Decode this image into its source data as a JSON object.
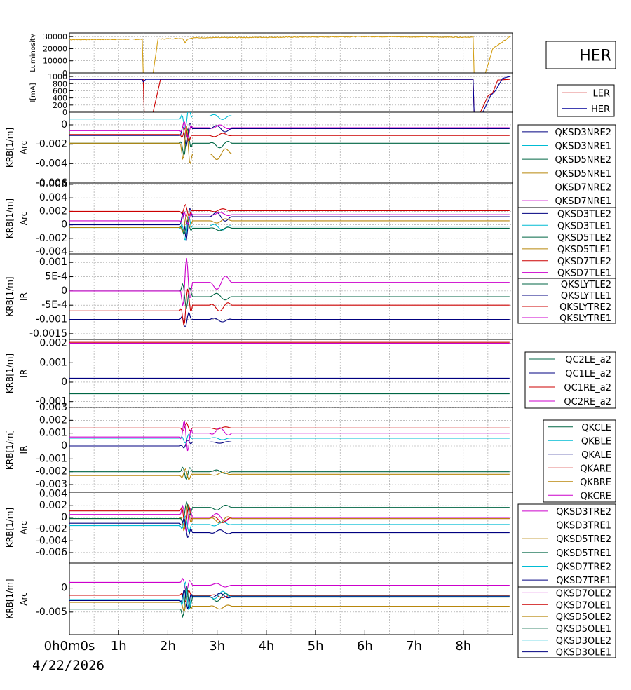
{
  "chart_data": [
    {
      "type": "line",
      "ylabel": "Luminosity",
      "yticks": [
        "30000",
        "20000",
        "10000",
        "0"
      ],
      "ylim": [
        0,
        33000
      ],
      "legend": [
        "HER"
      ],
      "series": [
        {
          "name": "HER",
          "color": "#d4a017",
          "base": 27500,
          "points": [
            [
              0,
              27500
            ],
            [
              1.2,
              27800
            ],
            [
              1.48,
              27800
            ],
            [
              1.5,
              0
            ],
            [
              1.7,
              0
            ],
            [
              1.8,
              28000
            ],
            [
              2.3,
              28500
            ],
            [
              2.35,
              25000
            ],
            [
              2.4,
              28000
            ],
            [
              2.5,
              29000
            ],
            [
              6,
              30000
            ],
            [
              8.2,
              29500
            ],
            [
              8.22,
              0
            ],
            [
              8.45,
              0
            ],
            [
              8.6,
              20000
            ],
            [
              8.95,
              30000
            ]
          ],
          "noise": 600
        }
      ]
    },
    {
      "type": "line",
      "ylabel": "I[mA]",
      "yticks": [
        "1000",
        "800",
        "600",
        "400",
        "200",
        "0"
      ],
      "ylim": [
        0,
        1100
      ],
      "legend": [
        "LER",
        "HER"
      ],
      "series": [
        {
          "name": "LER",
          "color": "#cc0000",
          "points": [
            [
              0,
              920
            ],
            [
              1.5,
              920
            ],
            [
              1.52,
              0
            ],
            [
              1.7,
              0
            ],
            [
              1.85,
              920
            ],
            [
              8.2,
              920
            ],
            [
              8.22,
              0
            ],
            [
              8.35,
              0
            ],
            [
              8.5,
              450
            ],
            [
              8.6,
              550
            ],
            [
              8.7,
              900
            ],
            [
              8.95,
              920
            ]
          ],
          "noise": 0
        },
        {
          "name": "HER",
          "color": "#000099",
          "points": [
            [
              0,
              920
            ],
            [
              1.48,
              920
            ],
            [
              1.5,
              850
            ],
            [
              1.55,
              920
            ],
            [
              8.2,
              920
            ],
            [
              8.22,
              0
            ],
            [
              8.4,
              0
            ],
            [
              8.55,
              450
            ],
            [
              8.65,
              600
            ],
            [
              8.8,
              950
            ],
            [
              8.95,
              1000
            ]
          ],
          "noise": 0
        }
      ]
    },
    {
      "type": "line",
      "ylabel": "KRB[1/m]",
      "ylabel2": "Arc",
      "yticks": [
        "0",
        "-0.002",
        "-0.004",
        "-0.006"
      ],
      "ylim": [
        -0.006,
        0.0013
      ],
      "legend": [
        "QKSD3NRE2",
        "QKSD3NRE1",
        "QKSD5NRE2",
        "QKSD5NRE1",
        "QKSD7NRE2",
        "QKSD7NRE1"
      ],
      "series": [
        {
          "name": "QKSD3NRE2",
          "color": "#000080",
          "before": -0.0011,
          "after": -0.0004,
          "spike": 0.0014
        },
        {
          "name": "QKSD3NRE1",
          "color": "#00bcd4",
          "before": 0.0006,
          "after": 0.0009,
          "spike": 0.0012
        },
        {
          "name": "QKSD5NRE2",
          "color": "#006644",
          "before": -0.0019,
          "after": -0.0019,
          "spike": 0.0016
        },
        {
          "name": "QKSD5NRE1",
          "color": "#b8860b",
          "before": -0.0019,
          "after": -0.003,
          "spike": 0.0024
        },
        {
          "name": "QKSD7NRE2",
          "color": "#cc0000",
          "before": -0.001,
          "after": -0.0011,
          "spike": 0.0008
        },
        {
          "name": "QKSD7NRE1",
          "color": "#cc00cc",
          "before": -0.0006,
          "after": -0.0003,
          "spike": 0.001
        }
      ]
    },
    {
      "type": "line",
      "ylabel": "KRB[1/m]",
      "ylabel2": "Arc",
      "yticks": [
        "0.006",
        "0.004",
        "0.002",
        "0",
        "-0.002",
        "-0.004"
      ],
      "ylim": [
        -0.0043,
        0.0062
      ],
      "legend": [
        "QKSD3TLE2",
        "QKSD3TLE1",
        "QKSD5TLE2",
        "QKSD5TLE1",
        "QKSD7TLE2",
        "QKSD7TLE1"
      ],
      "series": [
        {
          "name": "QKSD3TLE2",
          "color": "#000080",
          "before": 0.0,
          "after": 0.0012,
          "spike": 0.0028
        },
        {
          "name": "QKSD3TLE1",
          "color": "#00bcd4",
          "before": -0.0006,
          "after": -0.0002,
          "spike": 0.002
        },
        {
          "name": "QKSD5TLE2",
          "color": "#006644",
          "before": -0.0004,
          "after": -0.0005,
          "spike": 0.0012
        },
        {
          "name": "QKSD5TLE1",
          "color": "#b8860b",
          "before": -0.0004,
          "after": 0.0006,
          "spike": 0.0014
        },
        {
          "name": "QKSD7TLE2",
          "color": "#cc0000",
          "before": 0.002,
          "after": 0.0021,
          "spike": 0.001
        },
        {
          "name": "QKSD7TLE1",
          "color": "#cc00cc",
          "before": 0.0006,
          "after": 0.0015,
          "spike": 0.0012
        }
      ]
    },
    {
      "type": "line",
      "ylabel": "KRB[1/m]",
      "ylabel2": "IR",
      "yticks": [
        "0.001",
        "5E-4",
        "0",
        "-5E-4",
        "-0.001",
        "-0.0015"
      ],
      "ylim": [
        -0.0017,
        0.0013
      ],
      "legend": [
        "QKSLYTLE2",
        "QKSLYTLE1",
        "QKSLYTRE2",
        "QKSLYTRE1"
      ],
      "series": [
        {
          "name": "QKSLYTLE2",
          "color": "#006644",
          "before": 0.0,
          "after": -0.0002,
          "spike": 0.0005
        },
        {
          "name": "QKSLYTLE1",
          "color": "#000080",
          "before": -0.001,
          "after": -0.001,
          "spike": 0.0003
        },
        {
          "name": "QKSLYTRE2",
          "color": "#cc0000",
          "before": -0.0007,
          "after": -0.0005,
          "spike": 0.0007
        },
        {
          "name": "QKSLYTRE1",
          "color": "#cc00cc",
          "before": 0.0,
          "after": 0.0003,
          "spike": 0.001
        }
      ]
    },
    {
      "type": "line",
      "ylabel": "KRB[1/m]",
      "ylabel2": "IR",
      "yticks": [
        "0.002",
        "0.001",
        "0",
        "-0.001"
      ],
      "ylim": [
        -0.0013,
        0.0022
      ],
      "legend": [
        "QC2LE_a2",
        "QC1LE_a2",
        "QC1RE_a2",
        "QC2RE_a2"
      ],
      "series": [
        {
          "name": "QC2LE_a2",
          "color": "#006644",
          "before": -0.0006,
          "after": -0.0006,
          "spike": 0
        },
        {
          "name": "QC1LE_a2",
          "color": "#000080",
          "before": 0.0002,
          "after": 0.0002,
          "spike": 0
        },
        {
          "name": "QC1RE_a2",
          "color": "#cc0000",
          "before": 0.00205,
          "after": 0.00205,
          "spike": 0
        },
        {
          "name": "QC2RE_a2",
          "color": "#cc00cc",
          "before": 0.002,
          "after": 0.002,
          "spike": 0
        }
      ]
    },
    {
      "type": "line",
      "ylabel": "KRB[1/m]",
      "ylabel2": "IR",
      "yticks": [
        "0.003",
        "0.002",
        "0.001",
        "0",
        "-0.001",
        "-0.002",
        "-0.003"
      ],
      "ylim": [
        -0.0036,
        0.003
      ],
      "legend": [
        "QKCLE",
        "QKBLE",
        "QKALE",
        "QKARE",
        "QKBRE",
        "QKCRE"
      ],
      "series": [
        {
          "name": "QKCLE",
          "color": "#006644",
          "before": -0.002,
          "after": -0.002,
          "spike": 0.0006
        },
        {
          "name": "QKBLE",
          "color": "#00bcd4",
          "before": 0.0006,
          "after": 0.0006,
          "spike": 0.0004
        },
        {
          "name": "QKALE",
          "color": "#000080",
          "before": 0.0,
          "after": 0.0003,
          "spike": 0.0003
        },
        {
          "name": "QKARE",
          "color": "#cc0000",
          "before": 0.0014,
          "after": 0.0014,
          "spike": 0.0004
        },
        {
          "name": "QKBRE",
          "color": "#b8860b",
          "before": -0.0023,
          "after": -0.0022,
          "spike": 0.0005
        },
        {
          "name": "QKCRE",
          "color": "#cc00cc",
          "before": 0.0007,
          "after": 0.001,
          "spike": 0.0014
        }
      ]
    },
    {
      "type": "line",
      "ylabel": "KRB[1/m]",
      "ylabel2": "Arc",
      "yticks": [
        "0.004",
        "0.002",
        "0",
        "-0.002",
        "-0.004",
        "-0.006"
      ],
      "ylim": [
        -0.0078,
        0.0043
      ],
      "legend": [
        "QKSD3TRE2",
        "QKSD3TRE1",
        "QKSD5TRE2",
        "QKSD5TRE1",
        "QKSD7TRE2",
        "QKSD7TRE1"
      ],
      "series": [
        {
          "name": "QKSD3TRE2",
          "color": "#cc00cc",
          "before": 0.0005,
          "after": 0.0,
          "spike": 0.0028
        },
        {
          "name": "QKSD3TRE1",
          "color": "#cc0000",
          "before": 0.0011,
          "after": -0.0002,
          "spike": 0.0024
        },
        {
          "name": "QKSD5TRE2",
          "color": "#b8860b",
          "before": -0.0002,
          "after": -0.0002,
          "spike": 0.0026
        },
        {
          "name": "QKSD5TRE1",
          "color": "#006644",
          "before": -0.0002,
          "after": 0.0017,
          "spike": 0.0018
        },
        {
          "name": "QKSD7TRE2",
          "color": "#00bcd4",
          "before": -0.0014,
          "after": -0.0012,
          "spike": 0.0016
        },
        {
          "name": "QKSD7TRE1",
          "color": "#000080",
          "before": -0.001,
          "after": -0.0026,
          "spike": 0.0016
        }
      ]
    },
    {
      "type": "line",
      "ylabel": "KRB[1/m]",
      "ylabel2": "Arc",
      "yticks": [
        "0",
        "-0.005"
      ],
      "ylim": [
        -0.0097,
        0.0052
      ],
      "legend": [
        "QKSD7OLE2",
        "QKSD7OLE1",
        "QKSD5OLE2",
        "QKSD5OLE1",
        "QKSD3OLE2",
        "QKSD3OLE1"
      ],
      "series": [
        {
          "name": "QKSD7OLE2",
          "color": "#cc00cc",
          "before": 0.0012,
          "after": 0.0006,
          "spike": 0.0016
        },
        {
          "name": "QKSD7OLE1",
          "color": "#cc0000",
          "before": -0.0015,
          "after": -0.0016,
          "spike": 0.0014
        },
        {
          "name": "QKSD5OLE2",
          "color": "#b8860b",
          "before": -0.003,
          "after": -0.0038,
          "spike": 0.002
        },
        {
          "name": "QKSD5OLE1",
          "color": "#006644",
          "before": -0.0044,
          "after": -0.0019,
          "spike": 0.0036
        },
        {
          "name": "QKSD3OLE2",
          "color": "#00bcd4",
          "before": -0.0024,
          "after": -0.0017,
          "spike": 0.0036
        },
        {
          "name": "QKSD3OLE1",
          "color": "#000080",
          "before": -0.0026,
          "after": -0.0018,
          "spike": 0.0024
        }
      ]
    }
  ],
  "x_axis": {
    "xlim": [
      0,
      9
    ],
    "ticks": [
      {
        "v": 0,
        "label": "0h0m0s"
      },
      {
        "v": 1,
        "label": "1h"
      },
      {
        "v": 2,
        "label": "2h"
      },
      {
        "v": 3,
        "label": "3h"
      },
      {
        "v": 4,
        "label": "4h"
      },
      {
        "v": 5,
        "label": "5h"
      },
      {
        "v": 6,
        "label": "6h"
      },
      {
        "v": 7,
        "label": "7h"
      },
      {
        "v": 8,
        "label": "8h"
      }
    ],
    "date": "4/22/2026"
  }
}
